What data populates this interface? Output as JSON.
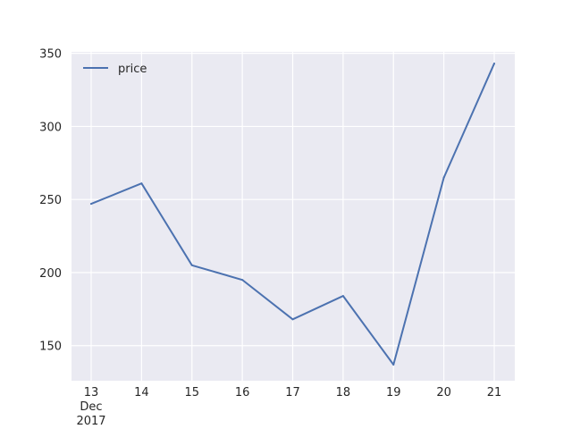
{
  "chart_data": {
    "type": "line",
    "title": "",
    "xlabel": "",
    "ylabel": "",
    "x": [
      "2017-12-13",
      "2017-12-14",
      "2017-12-15",
      "2017-12-16",
      "2017-12-17",
      "2017-12-18",
      "2017-12-19",
      "2017-12-20",
      "2017-12-21"
    ],
    "x_tick_labels": [
      "13",
      "14",
      "15",
      "16",
      "17",
      "18",
      "19",
      "20",
      "21"
    ],
    "x_month_label": "Dec",
    "x_year_label": "2017",
    "series": [
      {
        "name": "price",
        "values": [
          247,
          261,
          205,
          195,
          168,
          184,
          137,
          265,
          343
        ]
      }
    ],
    "y_ticks": [
      150,
      200,
      250,
      300,
      350
    ],
    "ylim": [
      126,
      351
    ],
    "grid": true,
    "legend": "top-left",
    "colors": {
      "background": "#eaeaf2",
      "grid": "#ffffff",
      "line": "#4c72b0",
      "text": "#262626"
    }
  }
}
